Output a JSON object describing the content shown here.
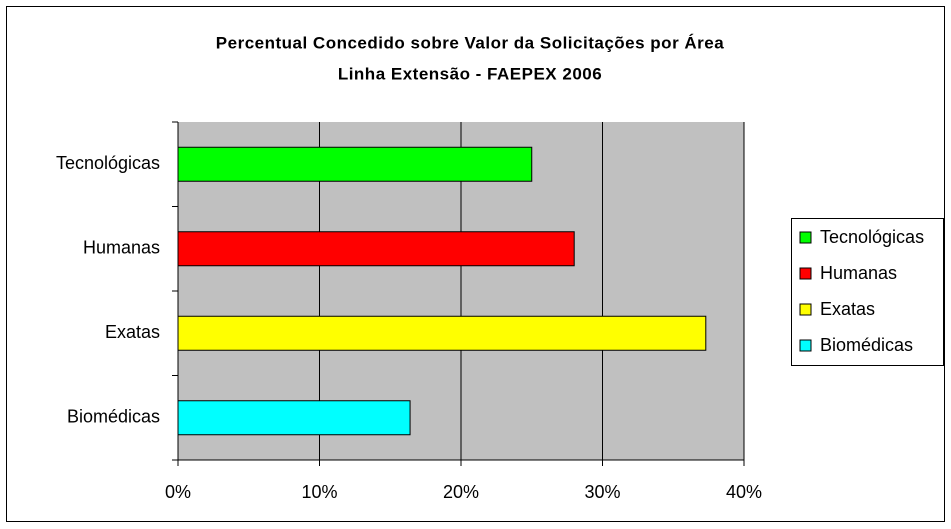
{
  "chart_data": {
    "type": "bar",
    "orientation": "horizontal",
    "title": "Percentual Concedido sobre Valor da Solicitações por Área",
    "subtitle": "Linha Extensão - FAEPEX 2006",
    "categories": [
      "Tecnológicas",
      "Humanas",
      "Exatas",
      "Biomédicas"
    ],
    "values": [
      25,
      28,
      37.3,
      16.4
    ],
    "colors": [
      "#00ff00",
      "#ff0000",
      "#ffff00",
      "#00ffff"
    ],
    "xlim": [
      0,
      40
    ],
    "xticks": [
      {
        "value": 0,
        "label": "0%"
      },
      {
        "value": 10,
        "label": "10%"
      },
      {
        "value": 20,
        "label": "20%"
      },
      {
        "value": 30,
        "label": "30%"
      },
      {
        "value": 40,
        "label": "40%"
      }
    ],
    "grid": true,
    "legend": "right"
  }
}
